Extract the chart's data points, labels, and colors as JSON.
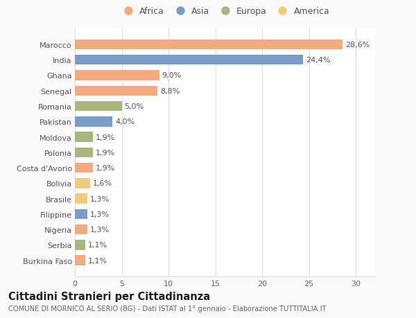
{
  "countries": [
    "Marocco",
    "India",
    "Ghana",
    "Senegal",
    "Romania",
    "Pakistan",
    "Moldova",
    "Polonia",
    "Costa d'Avorio",
    "Bolivia",
    "Brasile",
    "Filippine",
    "Nigeria",
    "Serbia",
    "Burkina Faso"
  ],
  "values": [
    28.6,
    24.4,
    9.0,
    8.8,
    5.0,
    4.0,
    1.9,
    1.9,
    1.9,
    1.6,
    1.3,
    1.3,
    1.3,
    1.1,
    1.1
  ],
  "labels": [
    "28,6%",
    "24,4%",
    "9,0%",
    "8,8%",
    "5,0%",
    "4,0%",
    "1,9%",
    "1,9%",
    "1,9%",
    "1,6%",
    "1,3%",
    "1,3%",
    "1,3%",
    "1,1%",
    "1,1%"
  ],
  "continents": [
    "Africa",
    "Asia",
    "Africa",
    "Africa",
    "Europa",
    "Asia",
    "Europa",
    "Europa",
    "Africa",
    "America",
    "America",
    "Asia",
    "Africa",
    "Europa",
    "Africa"
  ],
  "continent_colors": {
    "Africa": "#F4A97F",
    "Asia": "#7A9CC9",
    "Europa": "#A8B87C",
    "America": "#F0CC7A"
  },
  "legend_order": [
    "Africa",
    "Asia",
    "Europa",
    "America"
  ],
  "title": "Cittadini Stranieri per Cittadinanza",
  "subtitle": "COMUNE DI MORNICO AL SERIO (BG) - Dati ISTAT al 1° gennaio - Elaborazione TUTTITALIA.IT",
  "xlim": [
    0,
    32
  ],
  "xticks": [
    0,
    5,
    10,
    15,
    20,
    25,
    30
  ],
  "background_color": "#f9f9f9",
  "bar_background": "#ffffff",
  "grid_color": "#dddddd",
  "label_fontsize": 8,
  "tick_fontsize": 8,
  "title_fontsize": 10.5,
  "subtitle_fontsize": 7.2
}
